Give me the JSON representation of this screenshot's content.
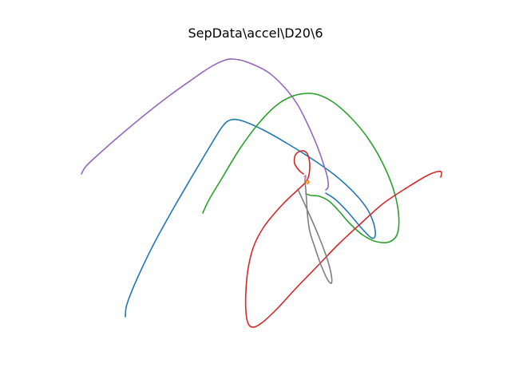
{
  "chart_data": {
    "type": "line",
    "title": "SepData\\accel\\D20\\6",
    "axes_visible": false,
    "grid": false,
    "series": [
      {
        "color": "#1f77b4",
        "points": [
          [
            157,
            397
          ],
          [
            158,
            385
          ],
          [
            163,
            370
          ],
          [
            175,
            342
          ],
          [
            193,
            305
          ],
          [
            215,
            265
          ],
          [
            240,
            222
          ],
          [
            262,
            185
          ],
          [
            279,
            158
          ],
          [
            290,
            150
          ],
          [
            305,
            152
          ],
          [
            330,
            163
          ],
          [
            360,
            180
          ],
          [
            392,
            200
          ],
          [
            420,
            220
          ],
          [
            444,
            242
          ],
          [
            460,
            262
          ],
          [
            468,
            280
          ],
          [
            470,
            295
          ],
          [
            465,
            298
          ],
          [
            452,
            285
          ],
          [
            435,
            265
          ],
          [
            420,
            250
          ],
          [
            408,
            242
          ]
        ]
      },
      {
        "color": "#9467bd",
        "points": [
          [
            102,
            218
          ],
          [
            108,
            208
          ],
          [
            125,
            192
          ],
          [
            150,
            170
          ],
          [
            180,
            145
          ],
          [
            212,
            120
          ],
          [
            240,
            100
          ],
          [
            262,
            85
          ],
          [
            280,
            76
          ],
          [
            292,
            74
          ],
          [
            310,
            78
          ],
          [
            335,
            90
          ],
          [
            355,
            108
          ],
          [
            372,
            130
          ],
          [
            385,
            155
          ],
          [
            396,
            180
          ],
          [
            404,
            202
          ],
          [
            410,
            222
          ],
          [
            411,
            234
          ],
          [
            408,
            238
          ]
        ]
      },
      {
        "color": "#2ca02c",
        "points": [
          [
            254,
            267
          ],
          [
            262,
            250
          ],
          [
            280,
            220
          ],
          [
            300,
            187
          ],
          [
            322,
            157
          ],
          [
            345,
            133
          ],
          [
            365,
            121
          ],
          [
            385,
            117
          ],
          [
            402,
            120
          ],
          [
            420,
            130
          ],
          [
            440,
            148
          ],
          [
            460,
            172
          ],
          [
            478,
            202
          ],
          [
            492,
            235
          ],
          [
            499,
            266
          ],
          [
            498,
            292
          ],
          [
            488,
            303
          ],
          [
            472,
            303
          ],
          [
            455,
            295
          ],
          [
            438,
            280
          ],
          [
            425,
            265
          ],
          [
            412,
            252
          ],
          [
            400,
            246
          ],
          [
            390,
            245
          ],
          [
            383,
            243
          ]
        ]
      },
      {
        "color": "#d62728",
        "points": [
          [
            552,
            222
          ],
          [
            553,
            216
          ],
          [
            548,
            215
          ],
          [
            535,
            220
          ],
          [
            510,
            235
          ],
          [
            480,
            255
          ],
          [
            452,
            280
          ],
          [
            425,
            305
          ],
          [
            398,
            333
          ],
          [
            370,
            362
          ],
          [
            347,
            387
          ],
          [
            330,
            403
          ],
          [
            318,
            410
          ],
          [
            311,
            406
          ],
          [
            308,
            390
          ],
          [
            308,
            365
          ],
          [
            311,
            335
          ],
          [
            318,
            308
          ],
          [
            330,
            285
          ],
          [
            345,
            266
          ],
          [
            360,
            250
          ],
          [
            374,
            237
          ],
          [
            385,
            225
          ],
          [
            388,
            208
          ],
          [
            385,
            193
          ],
          [
            378,
            189
          ],
          [
            370,
            194
          ],
          [
            369,
            205
          ],
          [
            375,
            214
          ],
          [
            380,
            218
          ]
        ]
      },
      {
        "color": "#7f7f7f",
        "points": [
          [
            373,
            237
          ],
          [
            378,
            248
          ],
          [
            388,
            270
          ],
          [
            400,
            298
          ],
          [
            410,
            325
          ],
          [
            415,
            345
          ],
          [
            415,
            355
          ],
          [
            410,
            350
          ],
          [
            402,
            332
          ],
          [
            395,
            312
          ],
          [
            388,
            290
          ],
          [
            385,
            268
          ],
          [
            384,
            252
          ],
          [
            383,
            238
          ],
          [
            382,
            226
          ],
          [
            383,
            220
          ]
        ]
      },
      {
        "color": "#ff7f0e",
        "points": [
          [
            383,
            227
          ],
          [
            385,
            230
          ],
          [
            387,
            228
          ],
          [
            385,
            226
          ]
        ]
      },
      {
        "color": "#e377c2",
        "points": [
          [
            381,
            221
          ],
          [
            383,
            223
          ],
          [
            382,
            225
          ]
        ]
      }
    ]
  }
}
